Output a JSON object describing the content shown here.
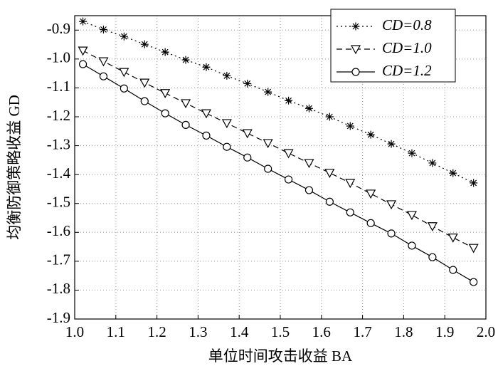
{
  "chart_data": {
    "type": "line",
    "x_label": "单位时间攻击收益 BA",
    "y_label": "均衡防御策略收益 GD",
    "x": [
      1.02,
      1.07,
      1.12,
      1.17,
      1.22,
      1.27,
      1.32,
      1.37,
      1.42,
      1.47,
      1.52,
      1.57,
      1.62,
      1.67,
      1.72,
      1.77,
      1.82,
      1.87,
      1.92,
      1.97
    ],
    "series": [
      {
        "name": "CD=0.8",
        "color": "#000000",
        "dash": "dotted",
        "marker": "star",
        "values": [
          -0.87,
          -0.898,
          -0.922,
          -0.949,
          -0.976,
          -1.003,
          -1.028,
          -1.058,
          -1.085,
          -1.114,
          -1.144,
          -1.171,
          -1.2,
          -1.232,
          -1.262,
          -1.294,
          -1.326,
          -1.36,
          -1.395,
          -1.429
        ]
      },
      {
        "name": "CD=1.0",
        "color": "#000000",
        "dash": "dashed",
        "marker": "triangle-down",
        "values": [
          -0.971,
          -1.008,
          -1.045,
          -1.082,
          -1.118,
          -1.153,
          -1.188,
          -1.222,
          -1.257,
          -1.291,
          -1.326,
          -1.36,
          -1.394,
          -1.429,
          -1.466,
          -1.503,
          -1.54,
          -1.579,
          -1.618,
          -1.654
        ]
      },
      {
        "name": "CD=1.2",
        "color": "#000000",
        "dash": "solid",
        "marker": "circle",
        "values": [
          -1.018,
          -1.06,
          -1.102,
          -1.146,
          -1.188,
          -1.228,
          -1.265,
          -1.304,
          -1.341,
          -1.38,
          -1.417,
          -1.454,
          -1.494,
          -1.531,
          -1.568,
          -1.604,
          -1.646,
          -1.686,
          -1.73,
          -1.772
        ]
      }
    ],
    "xlim": [
      1.0,
      2.0
    ],
    "xticks": [
      {
        "value": 1.0,
        "label": "1.0"
      },
      1.1,
      1.2,
      1.3,
      1.4,
      1.5,
      1.6,
      1.7,
      1.8,
      1.9,
      {
        "value": 2.0,
        "label": "2.0"
      }
    ],
    "ylim": [
      -1.9,
      -0.85
    ],
    "yticks": [
      -0.9,
      {
        "value": -1.0,
        "label": "-1.0"
      },
      -1.1,
      -1.2,
      -1.3,
      -1.4,
      -1.5,
      -1.6,
      -1.7,
      -1.8,
      -1.9
    ],
    "grid": true,
    "legend": "upper right"
  }
}
